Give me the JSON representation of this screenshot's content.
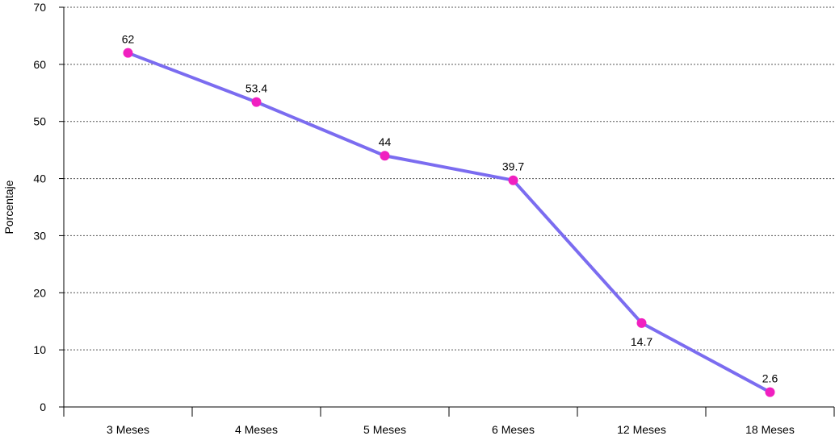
{
  "chart_data": {
    "type": "line",
    "title": "",
    "xlabel": "",
    "ylabel": "Porcentaje",
    "categories": [
      "3 Meses",
      "4 Meses",
      "5 Meses",
      "6 Meses",
      "12 Meses",
      "18 Meses"
    ],
    "series": [
      {
        "values": [
          62,
          53.4,
          44,
          39.7,
          14.7,
          2.6
        ],
        "labels": [
          "62",
          "53.4",
          "44",
          "39.7",
          "14.7",
          "2.6"
        ],
        "color": "#7b6cf0",
        "marker_color": "#f020c0"
      }
    ],
    "yticks": [
      "0",
      "10",
      "20",
      "30",
      "40",
      "50",
      "60",
      "70"
    ],
    "ylim": [
      0,
      70
    ],
    "grid": "horizontal-dotted",
    "legend": "none"
  }
}
